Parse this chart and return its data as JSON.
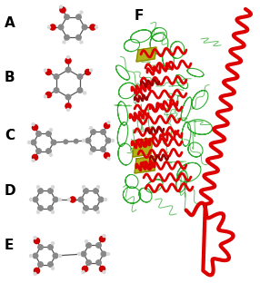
{
  "background_color": "#ffffff",
  "labels": [
    "A",
    "B",
    "C",
    "D",
    "E",
    "F"
  ],
  "label_fontsize": 11,
  "label_fontweight": "bold",
  "fig_width": 2.86,
  "fig_height": 3.12,
  "dpi": 100,
  "mol_colors": {
    "carbon": "#888888",
    "oxygen": "#cc0000",
    "hydrogen": "#d8d8d8",
    "bond": "#555555"
  },
  "protein_colors": {
    "helix": "#dd0000",
    "dark_helix": "#990000",
    "sheet": "#aaaa00",
    "loop": "#009900"
  }
}
